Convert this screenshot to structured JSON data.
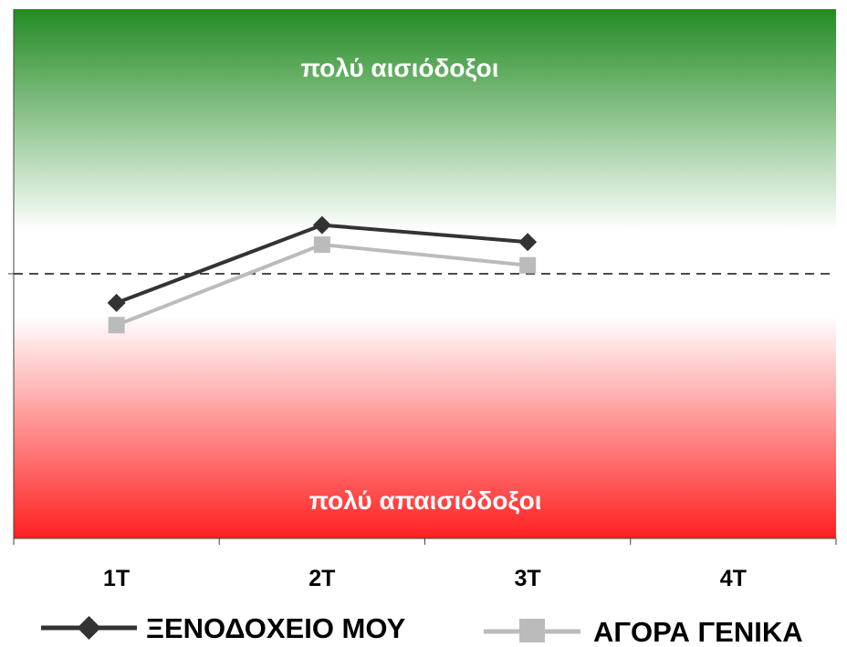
{
  "chart_data": {
    "type": "line",
    "categories": [
      "1T",
      "2T",
      "3T",
      "4T"
    ],
    "series": [
      {
        "name": "ΞΕΝΟΔΟΧΕΙΟ ΜΟΥ",
        "values": [
          -0.55,
          0.92,
          0.6,
          null
        ],
        "color": "#333333",
        "marker": "diamond"
      },
      {
        "name": "ΑΓΟΡΑ ΓΕΝΙΚΑ",
        "values": [
          -0.97,
          0.55,
          0.16,
          null
        ],
        "color": "#bbbbbb",
        "marker": "square"
      }
    ],
    "ylim": [
      -5,
      5
    ],
    "reference_line": 0,
    "annotations": {
      "top": "πολύ αισιόδοξοι",
      "bottom": "πολύ απαισιόδοξοι"
    },
    "background_gradient": {
      "top": "#228B22",
      "middle": "#ffffff",
      "bottom": "#ff2020"
    },
    "legend_position": "bottom",
    "grid": false,
    "title": "",
    "xlabel": "",
    "ylabel": ""
  }
}
